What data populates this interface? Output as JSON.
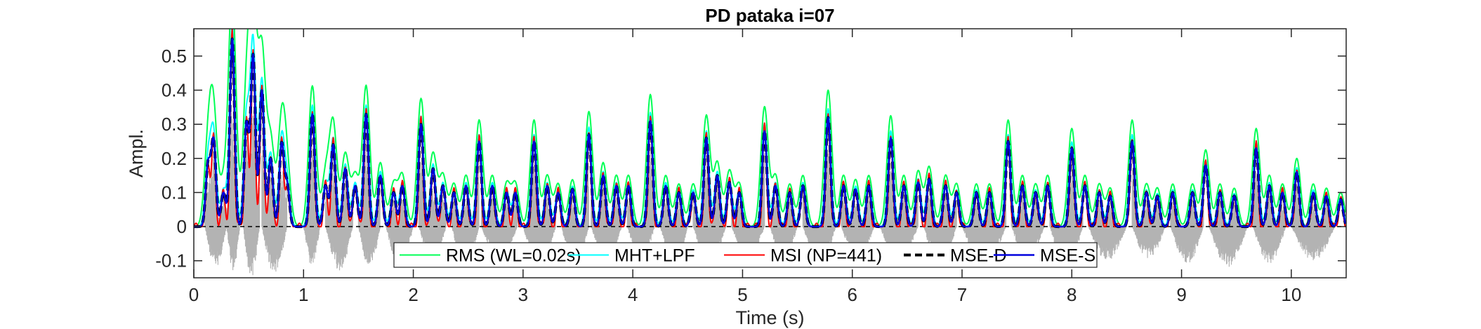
{
  "chart_data": {
    "type": "line",
    "title": "PD pataka i=07",
    "xlabel": "Time (s)",
    "ylabel": "Ampl.",
    "xlim": [
      0,
      10.5
    ],
    "ylim": [
      -0.15,
      0.58
    ],
    "xticks": [
      0,
      1,
      2,
      3,
      4,
      5,
      6,
      7,
      8,
      9,
      10
    ],
    "yticks": [
      -0.1,
      0,
      0.1,
      0.2,
      0.3,
      0.4,
      0.5
    ],
    "xtick_labels": [
      "0",
      "1",
      "2",
      "3",
      "4",
      "5",
      "6",
      "7",
      "8",
      "9",
      "10"
    ],
    "ytick_labels": [
      "-0.1",
      "0",
      "0.1",
      "0.2",
      "0.3",
      "0.4",
      "0.5"
    ],
    "grid": false,
    "legend_position": "bottom-center",
    "background_signal": {
      "name": "waveform",
      "color": "#b3b3b3",
      "description_units": "amplitude vs time (s)",
      "bursts": [
        [
          0.1,
          0.3,
          -0.12
        ],
        [
          0.3,
          0.42,
          -0.14
        ],
        [
          0.45,
          0.6,
          -0.15
        ],
        [
          0.62,
          0.85,
          -0.14
        ],
        [
          1.0,
          1.15,
          -0.12
        ],
        [
          1.2,
          1.45,
          -0.13
        ],
        [
          1.5,
          1.7,
          -0.12
        ],
        [
          1.75,
          2.0,
          -0.12
        ],
        [
          2.05,
          2.3,
          -0.1
        ],
        [
          2.35,
          2.6,
          -0.12
        ],
        [
          2.62,
          2.95,
          -0.1
        ],
        [
          3.0,
          3.3,
          -0.12
        ],
        [
          3.35,
          3.6,
          -0.12
        ],
        [
          3.62,
          3.9,
          -0.1
        ],
        [
          3.95,
          4.2,
          -0.1
        ],
        [
          4.25,
          4.5,
          -0.12
        ],
        [
          4.55,
          4.85,
          -0.11
        ],
        [
          4.9,
          5.2,
          -0.1
        ],
        [
          5.25,
          5.5,
          -0.1
        ],
        [
          5.55,
          5.85,
          -0.12
        ],
        [
          5.9,
          6.2,
          -0.1
        ],
        [
          6.25,
          6.6,
          -0.1
        ],
        [
          6.65,
          6.95,
          -0.12
        ],
        [
          7.0,
          7.4,
          -0.12
        ],
        [
          7.45,
          7.75,
          -0.1
        ],
        [
          7.8,
          8.1,
          -0.12
        ],
        [
          8.15,
          8.5,
          -0.1
        ],
        [
          8.55,
          8.85,
          -0.1
        ],
        [
          8.9,
          9.2,
          -0.11
        ],
        [
          9.25,
          9.6,
          -0.12
        ],
        [
          9.65,
          9.95,
          -0.11
        ],
        [
          10.0,
          10.4,
          -0.1
        ]
      ]
    },
    "peaks": [
      [
        0.13,
        0.18
      ],
      [
        0.18,
        0.25
      ],
      [
        0.27,
        0.1
      ],
      [
        0.35,
        0.55
      ],
      [
        0.48,
        0.3
      ],
      [
        0.54,
        0.5
      ],
      [
        0.62,
        0.4
      ],
      [
        0.7,
        0.2
      ],
      [
        0.8,
        0.24
      ],
      [
        0.85,
        0.12
      ],
      [
        1.08,
        0.33
      ],
      [
        1.2,
        0.12
      ],
      [
        1.27,
        0.24
      ],
      [
        1.38,
        0.17
      ],
      [
        1.47,
        0.12
      ],
      [
        1.57,
        0.33
      ],
      [
        1.7,
        0.15
      ],
      [
        1.82,
        0.1
      ],
      [
        1.9,
        0.12
      ],
      [
        2.07,
        0.3
      ],
      [
        2.18,
        0.17
      ],
      [
        2.27,
        0.12
      ],
      [
        2.37,
        0.1
      ],
      [
        2.48,
        0.12
      ],
      [
        2.6,
        0.25
      ],
      [
        2.72,
        0.12
      ],
      [
        2.85,
        0.1
      ],
      [
        2.93,
        0.1
      ],
      [
        3.1,
        0.25
      ],
      [
        3.22,
        0.12
      ],
      [
        3.32,
        0.1
      ],
      [
        3.45,
        0.11
      ],
      [
        3.6,
        0.27
      ],
      [
        3.73,
        0.15
      ],
      [
        3.85,
        0.12
      ],
      [
        3.96,
        0.12
      ],
      [
        4.16,
        0.31
      ],
      [
        4.3,
        0.12
      ],
      [
        4.42,
        0.1
      ],
      [
        4.55,
        0.1
      ],
      [
        4.67,
        0.26
      ],
      [
        4.77,
        0.15
      ],
      [
        4.88,
        0.13
      ],
      [
        4.97,
        0.1
      ],
      [
        5.2,
        0.28
      ],
      [
        5.3,
        0.12
      ],
      [
        5.43,
        0.1
      ],
      [
        5.55,
        0.12
      ],
      [
        5.78,
        0.32
      ],
      [
        5.92,
        0.12
      ],
      [
        6.03,
        0.11
      ],
      [
        6.15,
        0.12
      ],
      [
        6.35,
        0.26
      ],
      [
        6.47,
        0.12
      ],
      [
        6.6,
        0.13
      ],
      [
        6.7,
        0.14
      ],
      [
        6.85,
        0.12
      ],
      [
        6.95,
        0.1
      ],
      [
        7.13,
        0.1
      ],
      [
        7.25,
        0.1
      ],
      [
        7.42,
        0.25
      ],
      [
        7.55,
        0.12
      ],
      [
        7.67,
        0.1
      ],
      [
        7.78,
        0.12
      ],
      [
        8.0,
        0.23
      ],
      [
        8.12,
        0.12
      ],
      [
        8.25,
        0.1
      ],
      [
        8.35,
        0.09
      ],
      [
        8.55,
        0.25
      ],
      [
        8.68,
        0.1
      ],
      [
        8.78,
        0.09
      ],
      [
        8.92,
        0.1
      ],
      [
        9.1,
        0.1
      ],
      [
        9.22,
        0.18
      ],
      [
        9.35,
        0.1
      ],
      [
        9.48,
        0.09
      ],
      [
        9.68,
        0.23
      ],
      [
        9.8,
        0.12
      ],
      [
        9.92,
        0.1
      ],
      [
        10.05,
        0.16
      ],
      [
        10.2,
        0.1
      ],
      [
        10.32,
        0.09
      ],
      [
        10.45,
        0.08
      ]
    ],
    "series": [
      {
        "name": "RMS (WL=0.02s)",
        "color": "#00ff55",
        "dash": "solid",
        "width": 2,
        "scale": 1.25,
        "spread": 1.6
      },
      {
        "name": "MHT+LPF",
        "color": "#00ffff",
        "dash": "solid",
        "width": 2,
        "scale": 1.08,
        "spread": 1.2
      },
      {
        "name": "MSI (NP=441)",
        "color": "#ff0000",
        "dash": "solid",
        "width": 2,
        "scale": 1.05,
        "spread": 0.8
      },
      {
        "name": "MSE-D",
        "color": "#000000",
        "dash": "dashed",
        "width": 4,
        "scale": 1.0,
        "spread": 1.0
      },
      {
        "name": "MSE-S",
        "color": "#0000dd",
        "dash": "solid",
        "width": 2.5,
        "scale": 1.0,
        "spread": 1.0
      }
    ]
  }
}
